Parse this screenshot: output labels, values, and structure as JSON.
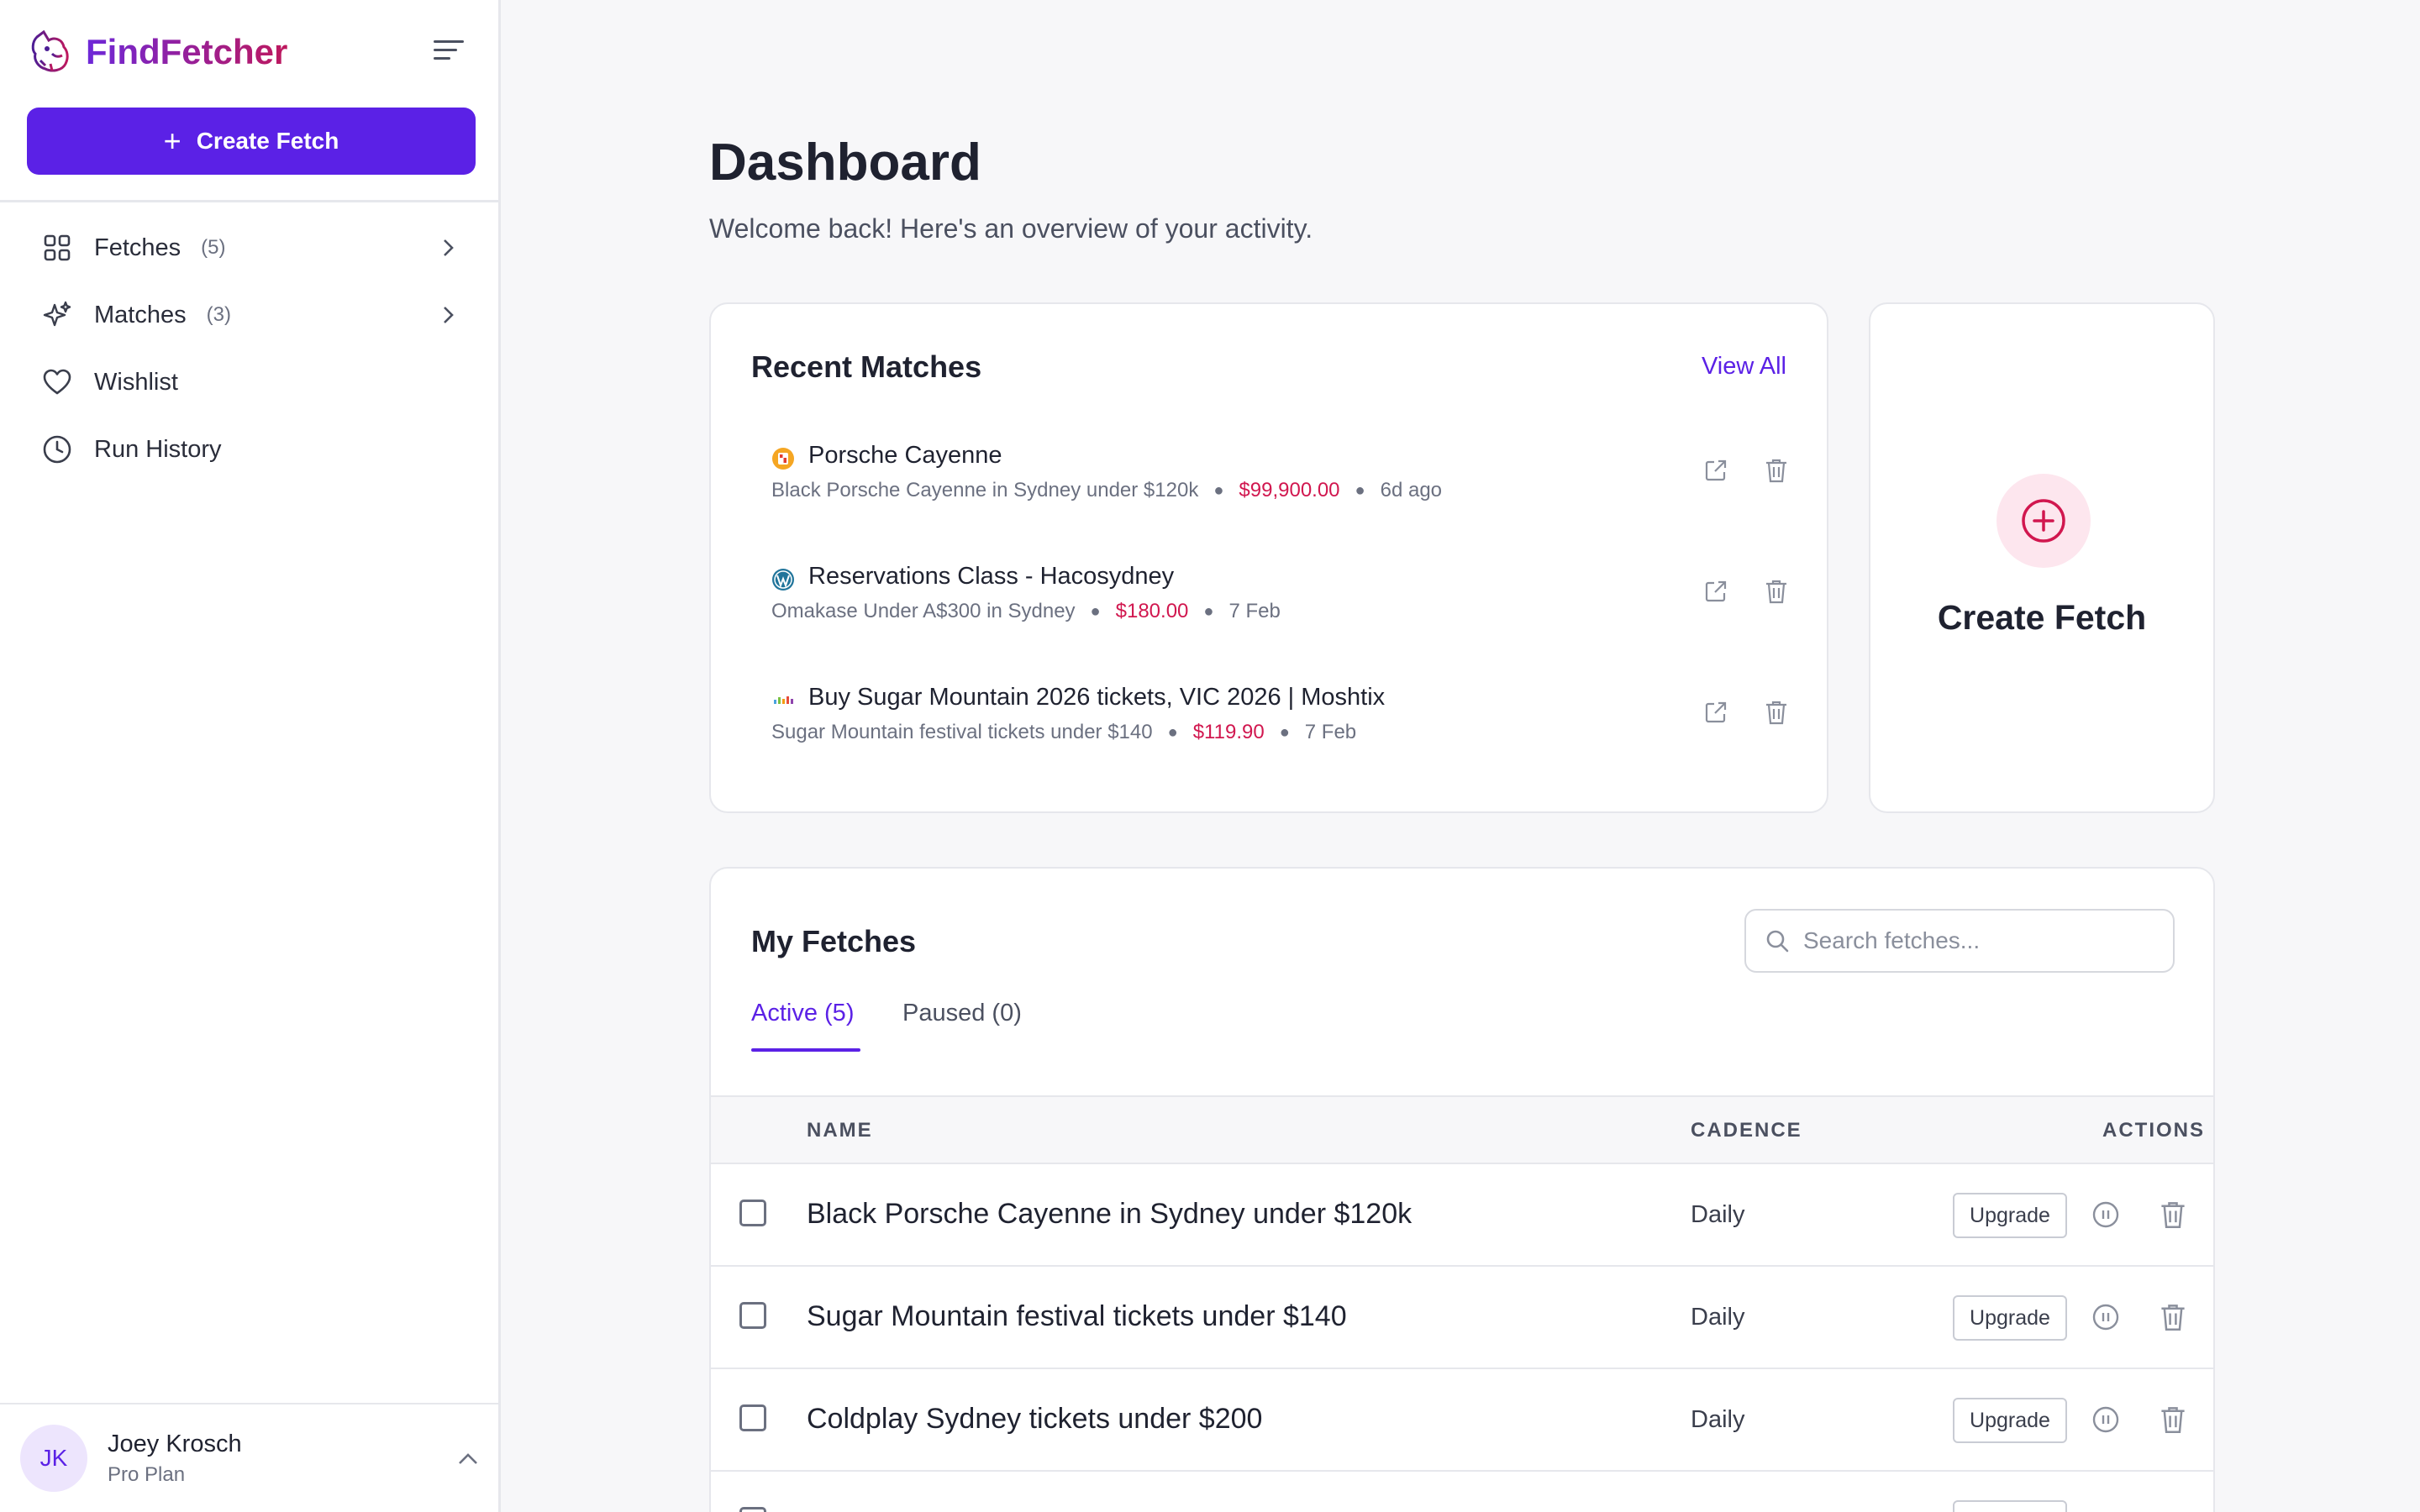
{
  "brand": {
    "name": "FindFetcher"
  },
  "sidebar": {
    "create_label": "Create Fetch",
    "items": [
      {
        "label": "Fetches",
        "count": "(5)",
        "icon": "grid-icon"
      },
      {
        "label": "Matches",
        "count": "(3)",
        "icon": "sparkles-icon"
      },
      {
        "label": "Wishlist",
        "icon": "heart-icon"
      },
      {
        "label": "Run History",
        "icon": "clock-icon"
      }
    ],
    "user": {
      "initials": "JK",
      "name": "Joey Krosch",
      "plan": "Pro Plan"
    }
  },
  "main": {
    "title": "Dashboard",
    "subtitle": "Welcome back! Here's an overview of your activity."
  },
  "recent_matches": {
    "title": "Recent Matches",
    "view_all": "View All",
    "items": [
      {
        "title": "Porsche Cayenne",
        "fetch": "Black Porsche Cayenne in Sydney under $120k",
        "price": "$99,900.00",
        "time": "6d ago",
        "icon": "porsche-favicon"
      },
      {
        "title": "Reservations Class - Hacosydney",
        "fetch": "Omakase Under A$300 in Sydney",
        "price": "$180.00",
        "time": "7 Feb",
        "icon": "wordpress-favicon"
      },
      {
        "title": "Buy Sugar Mountain 2026 tickets, VIC 2026 | Moshtix",
        "fetch": "Sugar Mountain festival tickets under $140",
        "price": "$119.90",
        "time": "7 Feb",
        "icon": "moshtix-favicon"
      }
    ]
  },
  "quick_create": {
    "label": "Create Fetch"
  },
  "my_fetches": {
    "title": "My Fetches",
    "search_placeholder": "Search fetches...",
    "tabs": [
      {
        "label": "Active (5)",
        "active": true
      },
      {
        "label": "Paused (0)",
        "active": false
      }
    ],
    "columns": {
      "name": "NAME",
      "cadence": "CADENCE",
      "actions": "ACTIONS"
    },
    "rows": [
      {
        "name": "Black Porsche Cayenne in Sydney under $120k",
        "cadence": "Daily",
        "action": "Upgrade"
      },
      {
        "name": "Sugar Mountain festival tickets under $140",
        "cadence": "Daily",
        "action": "Upgrade"
      },
      {
        "name": "Coldplay Sydney tickets under $200",
        "cadence": "Daily",
        "action": "Upgrade"
      }
    ]
  },
  "colors": {
    "accent": "#5b21e6",
    "price": "#d1174f",
    "brand_gradient_end": "#be185d"
  }
}
